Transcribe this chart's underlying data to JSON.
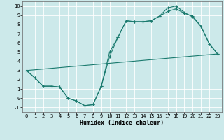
{
  "xlabel": "Humidex (Indice chaleur)",
  "xlim": [
    -0.5,
    23.5
  ],
  "ylim": [
    -1.5,
    10.5
  ],
  "xticks": [
    0,
    1,
    2,
    3,
    4,
    5,
    6,
    7,
    8,
    9,
    10,
    11,
    12,
    13,
    14,
    15,
    16,
    17,
    18,
    19,
    20,
    21,
    22,
    23
  ],
  "yticks": [
    -1,
    0,
    1,
    2,
    3,
    4,
    5,
    6,
    7,
    8,
    9,
    10
  ],
  "background_color": "#cce9ea",
  "grid_color": "#ffffff",
  "line_color": "#1a7a6e",
  "line1_x": [
    0,
    1,
    2,
    3,
    4,
    5,
    6,
    7,
    8,
    9,
    10,
    11,
    12,
    13,
    14,
    15,
    16,
    17,
    18,
    19,
    20,
    21,
    22,
    23
  ],
  "line1_y": [
    3.0,
    2.2,
    1.3,
    1.3,
    1.2,
    0.0,
    -0.3,
    -0.8,
    -0.7,
    1.3,
    4.5,
    6.6,
    8.4,
    8.3,
    8.3,
    8.4,
    8.9,
    9.8,
    10.0,
    9.3,
    8.8,
    7.8,
    5.9,
    4.8
  ],
  "line2_x": [
    0,
    1,
    2,
    3,
    4,
    5,
    6,
    7,
    8,
    9,
    10,
    11,
    12,
    13,
    14,
    15,
    16,
    17,
    18,
    19,
    20,
    21,
    22,
    23
  ],
  "line2_y": [
    3.0,
    2.2,
    1.3,
    1.3,
    1.2,
    0.0,
    -0.3,
    -0.8,
    -0.7,
    1.3,
    5.0,
    6.6,
    8.4,
    8.3,
    8.3,
    8.4,
    8.9,
    9.4,
    9.7,
    9.2,
    8.9,
    7.8,
    5.9,
    4.8
  ],
  "line3_x": [
    0,
    23
  ],
  "line3_y": [
    3.0,
    4.8
  ]
}
